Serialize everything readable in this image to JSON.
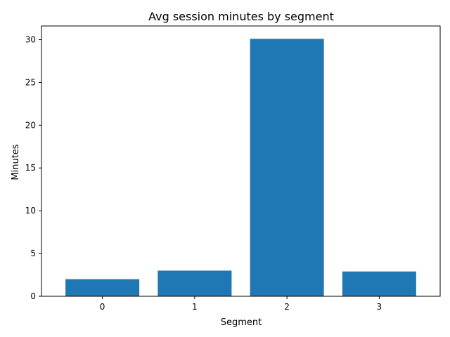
{
  "chart_data": {
    "type": "bar",
    "title": "Avg session minutes by segment",
    "xlabel": "Segment",
    "ylabel": "Minutes",
    "categories": [
      "0",
      "1",
      "2",
      "3"
    ],
    "values": [
      2.0,
      3.0,
      30.1,
      2.9
    ],
    "ylim": [
      0,
      31.6
    ],
    "yticks": [
      0,
      5,
      10,
      15,
      20,
      25,
      30
    ],
    "grid": false,
    "legend": "none",
    "colors": {
      "bar": "#1f77b4",
      "axes": "#000000",
      "background": "#ffffff"
    }
  }
}
